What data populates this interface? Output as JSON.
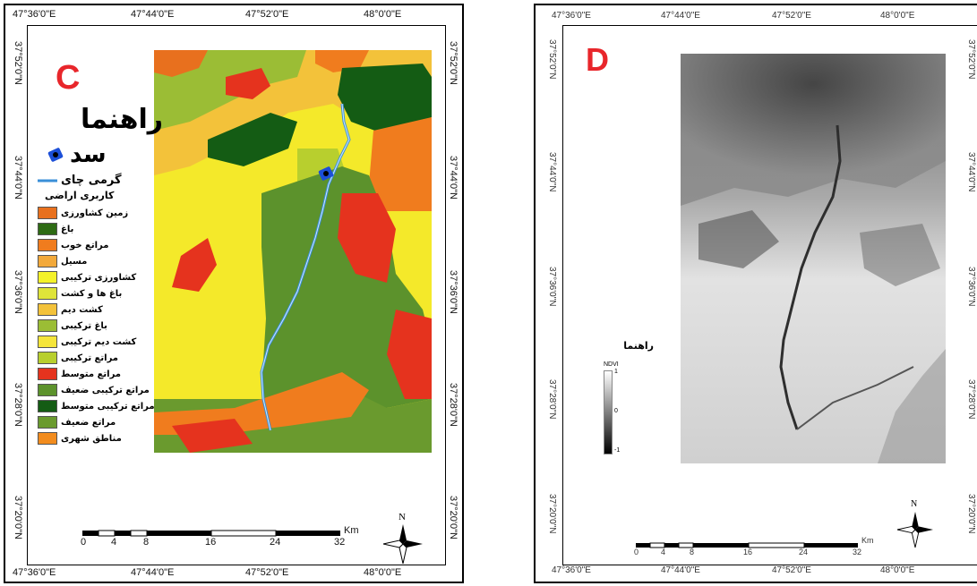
{
  "panel_c": {
    "letter": "C",
    "letter_color": "#e8262b",
    "top_ticks": [
      "47°36'0\"E",
      "47°44'0\"E",
      "47°52'0\"E",
      "48°0'0\"E"
    ],
    "bottom_ticks": [
      "47°36'0\"E",
      "47°44'0\"E",
      "47°52'0\"E",
      "48°0'0\"E"
    ],
    "left_ticks": [
      "37°52'0\"N",
      "37°44'0\"N",
      "37°36'0\"N",
      "37°28'0\"N",
      "37°20'0\"N"
    ],
    "right_ticks": [
      "37°52'0\"N",
      "37°44'0\"N",
      "37°36'0\"N",
      "37°28'0\"N",
      "37°20'0\"N"
    ],
    "legend": {
      "title": "راهنما",
      "dam_label": "سد",
      "river_label": "گرمی چای",
      "landuse_title": "کاربری اراضی",
      "items": [
        {
          "label": "زمین کشاورزی",
          "color": "#e8701e"
        },
        {
          "label": "باغ",
          "color": "#2e6b14"
        },
        {
          "label": "مراتع خوب",
          "color": "#f07c1e"
        },
        {
          "label": "مسیل",
          "color": "#f2a93b"
        },
        {
          "label": "کشاورزی ترکیبی",
          "color": "#f4f22a"
        },
        {
          "label": "باغ ها و کشت",
          "color": "#dfe43a"
        },
        {
          "label": "کشت دیم",
          "color": "#f3c23a"
        },
        {
          "label": "باغ ترکیبی",
          "color": "#9bbd35"
        },
        {
          "label": "کشت دیم ترکیبی",
          "color": "#f5e53a"
        },
        {
          "label": "مراتع ترکیبی",
          "color": "#b8cf2e"
        },
        {
          "label": "مراتع متوسط",
          "color": "#e5331e"
        },
        {
          "label": "مراتع ترکیبی ضعیف",
          "color": "#5c922c"
        },
        {
          "label": "مراتع ترکیبی متوسط",
          "color": "#145c14"
        },
        {
          "label": "مراتع ضعیف",
          "color": "#6a9a2e"
        },
        {
          "label": "مناطق شهری",
          "color": "#f28c1e"
        }
      ]
    },
    "scale": {
      "labels": [
        "0",
        "4",
        "8",
        "16",
        "24",
        "32"
      ],
      "unit": "Km"
    },
    "north": "N"
  },
  "panel_d": {
    "letter": "D",
    "letter_color": "#e8262b",
    "top_ticks": [
      "47°36'0\"E",
      "47°44'0\"E",
      "47°52'0\"E",
      "48°0'0\"E"
    ],
    "bottom_ticks": [
      "47°36'0\"E",
      "47°44'0\"E",
      "47°52'0\"E",
      "48°0'0\"E"
    ],
    "left_ticks": [
      "37°52'0\"N",
      "37°44'0\"N",
      "37°36'0\"N",
      "37°28'0\"N",
      "37°20'0\"N"
    ],
    "right_ticks": [
      "37°52'0\"N",
      "37°44'0\"N",
      "37°36'0\"N",
      "37°28'0\"N",
      "37°20'0\"N"
    ],
    "legend": {
      "title": "راهنما",
      "ndvi_label": "NDVI",
      "high": "1",
      "mid": "0",
      "low": "-1"
    },
    "scale": {
      "labels": [
        "0",
        "4",
        "8",
        "16",
        "24",
        "32"
      ],
      "unit": "Km"
    },
    "north": "N"
  }
}
